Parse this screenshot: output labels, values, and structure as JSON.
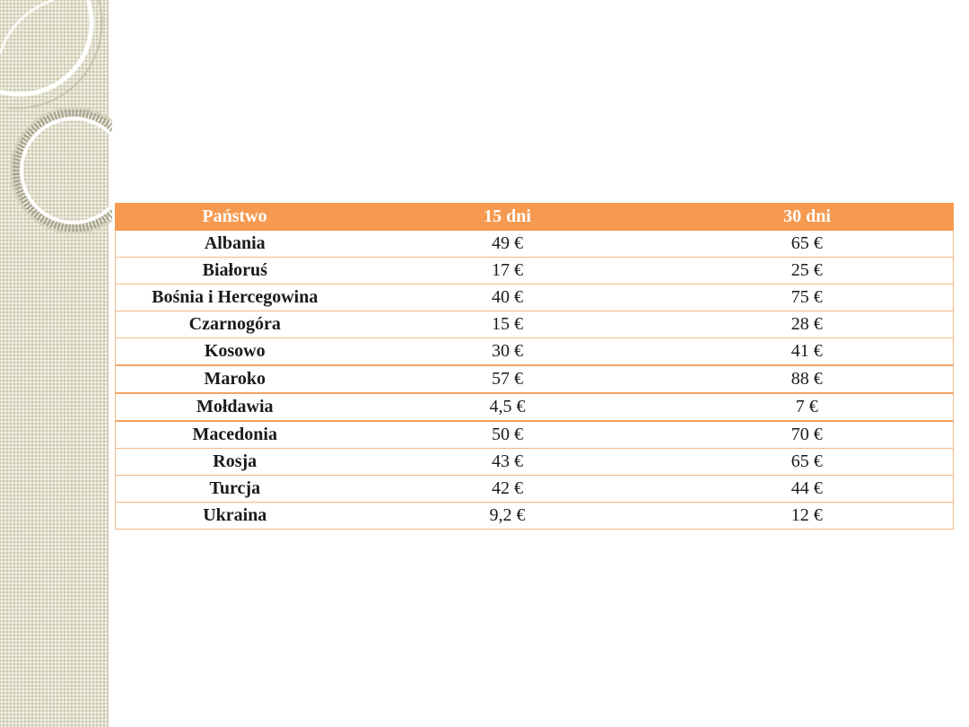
{
  "table": {
    "headers": [
      "Państwo",
      "15 dni",
      "30 dni"
    ],
    "rows": [
      [
        "Albania",
        "49 €",
        "65 €"
      ],
      [
        "Białoruś",
        "17 €",
        "25 €"
      ],
      [
        "Bośnia i Hercegowina",
        "40 €",
        "75 €"
      ],
      [
        "Czarnogóra",
        "15 €",
        "28 €"
      ],
      [
        "Kosowo",
        "30 €",
        "41 €"
      ],
      [
        "Maroko",
        "57 €",
        "88 €"
      ],
      [
        "Mołdawia",
        "4,5 €",
        "7 €"
      ],
      [
        "Macedonia",
        "50 €",
        "70 €"
      ],
      [
        "Rosja",
        "43 €",
        "65 €"
      ],
      [
        "Turcja",
        "42 €",
        "44 €"
      ],
      [
        "Ukraina",
        "9,2 €",
        "12 €"
      ]
    ]
  },
  "colors": {
    "header_bg": "#f59a50",
    "header_text": "#ffffff",
    "row_border": "#f2b98a",
    "side_strip": "#e3e1cd"
  },
  "decoration": {
    "rings": [
      "ring-icon",
      "ring-icon"
    ]
  }
}
